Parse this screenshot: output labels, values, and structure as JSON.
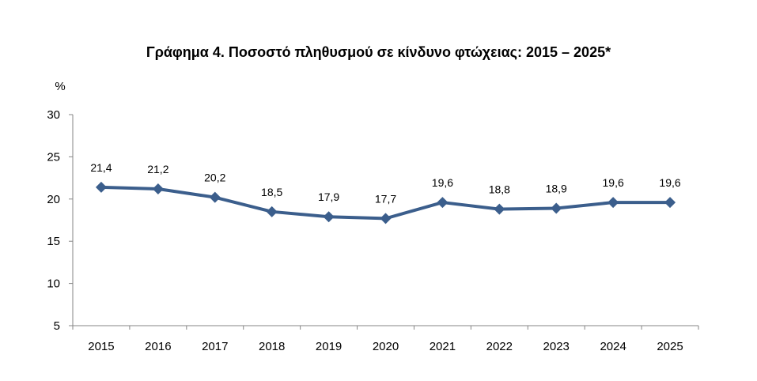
{
  "chart_data": {
    "type": "line",
    "title": "Γράφημα 4. Ποσοστό πληθυσμού σε κίνδυνο φτώχειας: 2015 – 2025*",
    "ylabel": "%",
    "xlabel": "",
    "categories": [
      "2015",
      "2016",
      "2017",
      "2018",
      "2019",
      "2020",
      "2021",
      "2022",
      "2023",
      "2024",
      "2025"
    ],
    "series": [
      {
        "name": "Ποσοστό πληθυσμού σε κίνδυνο φτώχειας",
        "values": [
          21.4,
          21.2,
          20.2,
          18.5,
          17.9,
          17.7,
          19.6,
          18.8,
          18.9,
          19.6,
          19.6
        ],
        "labels": [
          "21,4",
          "21,2",
          "20,2",
          "18,5",
          "17,9",
          "17,7",
          "19,6",
          "18,8",
          "18,9",
          "19,6",
          "19,6"
        ]
      }
    ],
    "ylim": [
      5,
      30
    ],
    "yticks": [
      "5",
      "10",
      "15",
      "20",
      "25",
      "30"
    ],
    "grid": false,
    "legend": "none",
    "colors": {
      "line": "#3b5e8c",
      "axis": "#868686"
    }
  }
}
